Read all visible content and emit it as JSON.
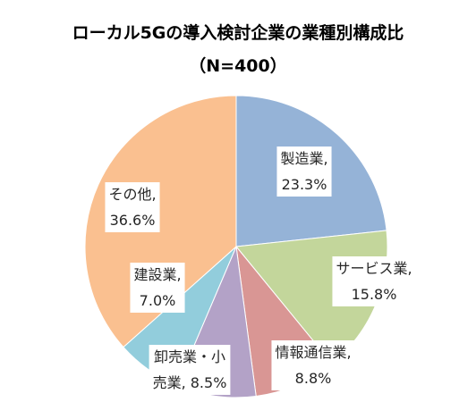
{
  "chart_data": {
    "type": "pie",
    "title": "ローカル5Gの導入検討企業の業種別構成比",
    "subtitle": "（N=400）",
    "start_angle_deg": 0,
    "direction": "clockwise",
    "slices": [
      {
        "line1": "製造業,",
        "line2": "23.3%",
        "value": 23.3,
        "color": "#95B3D7"
      },
      {
        "line1": "サービス業,",
        "line2": "15.8%",
        "value": 15.8,
        "color": "#C3D69B"
      },
      {
        "line1": "情報通信業,",
        "line2": "8.8%",
        "value": 8.8,
        "color": "#D99694"
      },
      {
        "line1": "卸売業・小",
        "line2": "売業, 8.5%",
        "value": 8.5,
        "color": "#B3A2C7"
      },
      {
        "line1": "建設業,",
        "line2": "7.0%",
        "value": 7.0,
        "color": "#92CDDC"
      },
      {
        "line1": "その他,",
        "line2": "36.6%",
        "value": 36.6,
        "color": "#FAC090"
      }
    ]
  }
}
